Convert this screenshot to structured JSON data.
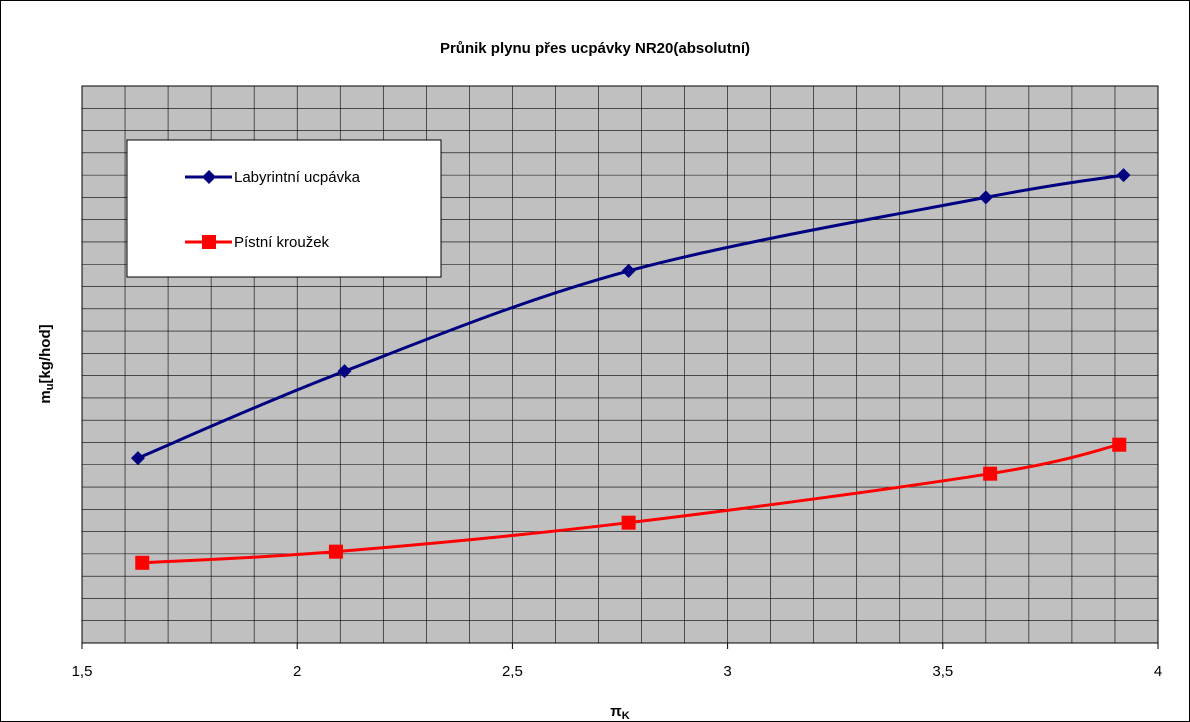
{
  "chart_data": {
    "type": "line",
    "title": "Průnik plynu přes ucpávky NR20(absolutní)",
    "xlabel": "πK",
    "xlabel_main": "π",
    "xlabel_sub": "K",
    "ylabel_main": "m",
    "ylabel_sub": "u",
    "ylabel_rest": "[kg/hod]",
    "xlim": [
      1.5,
      4
    ],
    "x_ticks": [
      "1,5",
      "2",
      "2,5",
      "3",
      "3,5",
      "4"
    ],
    "x_tick_values": [
      1.5,
      2,
      2.5,
      3,
      3.5,
      4
    ],
    "ylim": [
      0,
      25
    ],
    "grid": true,
    "legend_position": "top-left",
    "series": [
      {
        "name": "Labyrintní ucpávka",
        "color": "#000080",
        "marker": "diamond",
        "x": [
          1.63,
          2.11,
          2.77,
          3.6,
          3.92
        ],
        "y": [
          8.3,
          12.2,
          16.7,
          20.0,
          21.0
        ]
      },
      {
        "name": "Pístní kroužek",
        "color": "#ff0000",
        "marker": "square",
        "x": [
          1.64,
          2.09,
          2.77,
          3.61,
          3.91
        ],
        "y": [
          3.6,
          4.1,
          5.4,
          7.6,
          8.9
        ]
      }
    ]
  }
}
